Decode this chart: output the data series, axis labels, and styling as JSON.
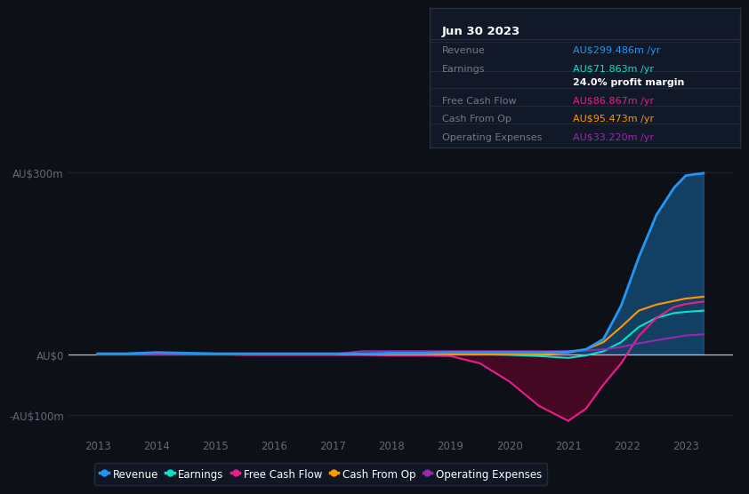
{
  "background_color": "#0d1117",
  "plot_bg_color": "#0d1117",
  "grid_color": "#1e2330",
  "zero_line_color": "#c0c0c0",
  "tick_color": "#666677",
  "years": [
    2013.0,
    2013.5,
    2014.0,
    2014.5,
    2015.0,
    2015.5,
    2016.0,
    2016.5,
    2017.0,
    2017.5,
    2018.0,
    2018.5,
    2019.0,
    2019.5,
    2020.0,
    2020.5,
    2021.0,
    2021.3,
    2021.6,
    2021.9,
    2022.2,
    2022.5,
    2022.8,
    2023.0,
    2023.3
  ],
  "revenue": [
    1,
    1,
    3,
    2,
    1,
    1,
    1,
    1,
    1,
    1,
    2,
    2,
    3,
    3,
    3,
    3,
    4,
    8,
    25,
    80,
    160,
    230,
    275,
    295,
    299
  ],
  "earnings": [
    0,
    1,
    2,
    1,
    0,
    0,
    0,
    0,
    0,
    0,
    0,
    0,
    0,
    0,
    -1,
    -3,
    -6,
    -2,
    5,
    20,
    45,
    60,
    68,
    70,
    72
  ],
  "free_cash_flow": [
    0,
    0,
    0,
    0,
    0,
    -1,
    -1,
    -1,
    -1,
    -1,
    -2,
    -2,
    -3,
    -15,
    -45,
    -85,
    -110,
    -90,
    -50,
    -15,
    30,
    60,
    78,
    83,
    87
  ],
  "cash_from_op": [
    0,
    0,
    0,
    0,
    0,
    0,
    0,
    0,
    0,
    0,
    0,
    0,
    0,
    0,
    0,
    0,
    3,
    8,
    20,
    45,
    72,
    82,
    88,
    92,
    95
  ],
  "operating_expenses": [
    0,
    0,
    0,
    0,
    0,
    0,
    0,
    0,
    0,
    5,
    5,
    5,
    5,
    5,
    5,
    5,
    5,
    6,
    8,
    12,
    18,
    23,
    28,
    31,
    33
  ],
  "revenue_color": "#2196f3",
  "earnings_color": "#00e5cc",
  "free_cash_flow_color": "#e91e8c",
  "cash_from_op_color": "#ff9800",
  "operating_expenses_color": "#9c27b0",
  "fill_revenue_alpha": 0.35,
  "fill_fcf_alpha": 0.5,
  "info_box": {
    "title": "Jun 30 2023",
    "bg_color": "#111827",
    "border_color": "#2a3040",
    "title_color": "#ffffff",
    "label_color": "#777788",
    "rows": [
      {
        "label": "Revenue",
        "value": "AU$299.486m /yr",
        "value_color": "#2196f3"
      },
      {
        "label": "Earnings",
        "value": "AU$71.863m /yr",
        "value_color": "#00e5cc"
      },
      {
        "label": "",
        "value": "24.0% profit margin",
        "value_color": "#ffffff",
        "bold": true
      },
      {
        "label": "Free Cash Flow",
        "value": "AU$86.867m /yr",
        "value_color": "#e91e8c"
      },
      {
        "label": "Cash From Op",
        "value": "AU$95.473m /yr",
        "value_color": "#ff9800"
      },
      {
        "label": "Operating Expenses",
        "value": "AU$33.220m /yr",
        "value_color": "#9c27b0"
      }
    ]
  },
  "legend_items": [
    {
      "label": "Revenue",
      "color": "#2196f3"
    },
    {
      "label": "Earnings",
      "color": "#00e5cc"
    },
    {
      "label": "Free Cash Flow",
      "color": "#e91e8c"
    },
    {
      "label": "Cash From Op",
      "color": "#ff9800"
    },
    {
      "label": "Operating Expenses",
      "color": "#9c27b0"
    }
  ],
  "xlim": [
    2012.5,
    2023.8
  ],
  "ylim": [
    -135,
    325
  ],
  "yticks": [
    -100,
    0,
    300
  ],
  "ytick_labels": [
    "-AU$100m",
    "AU$0",
    "AU$300m"
  ],
  "xticks": [
    2013,
    2014,
    2015,
    2016,
    2017,
    2018,
    2019,
    2020,
    2021,
    2022,
    2023
  ]
}
